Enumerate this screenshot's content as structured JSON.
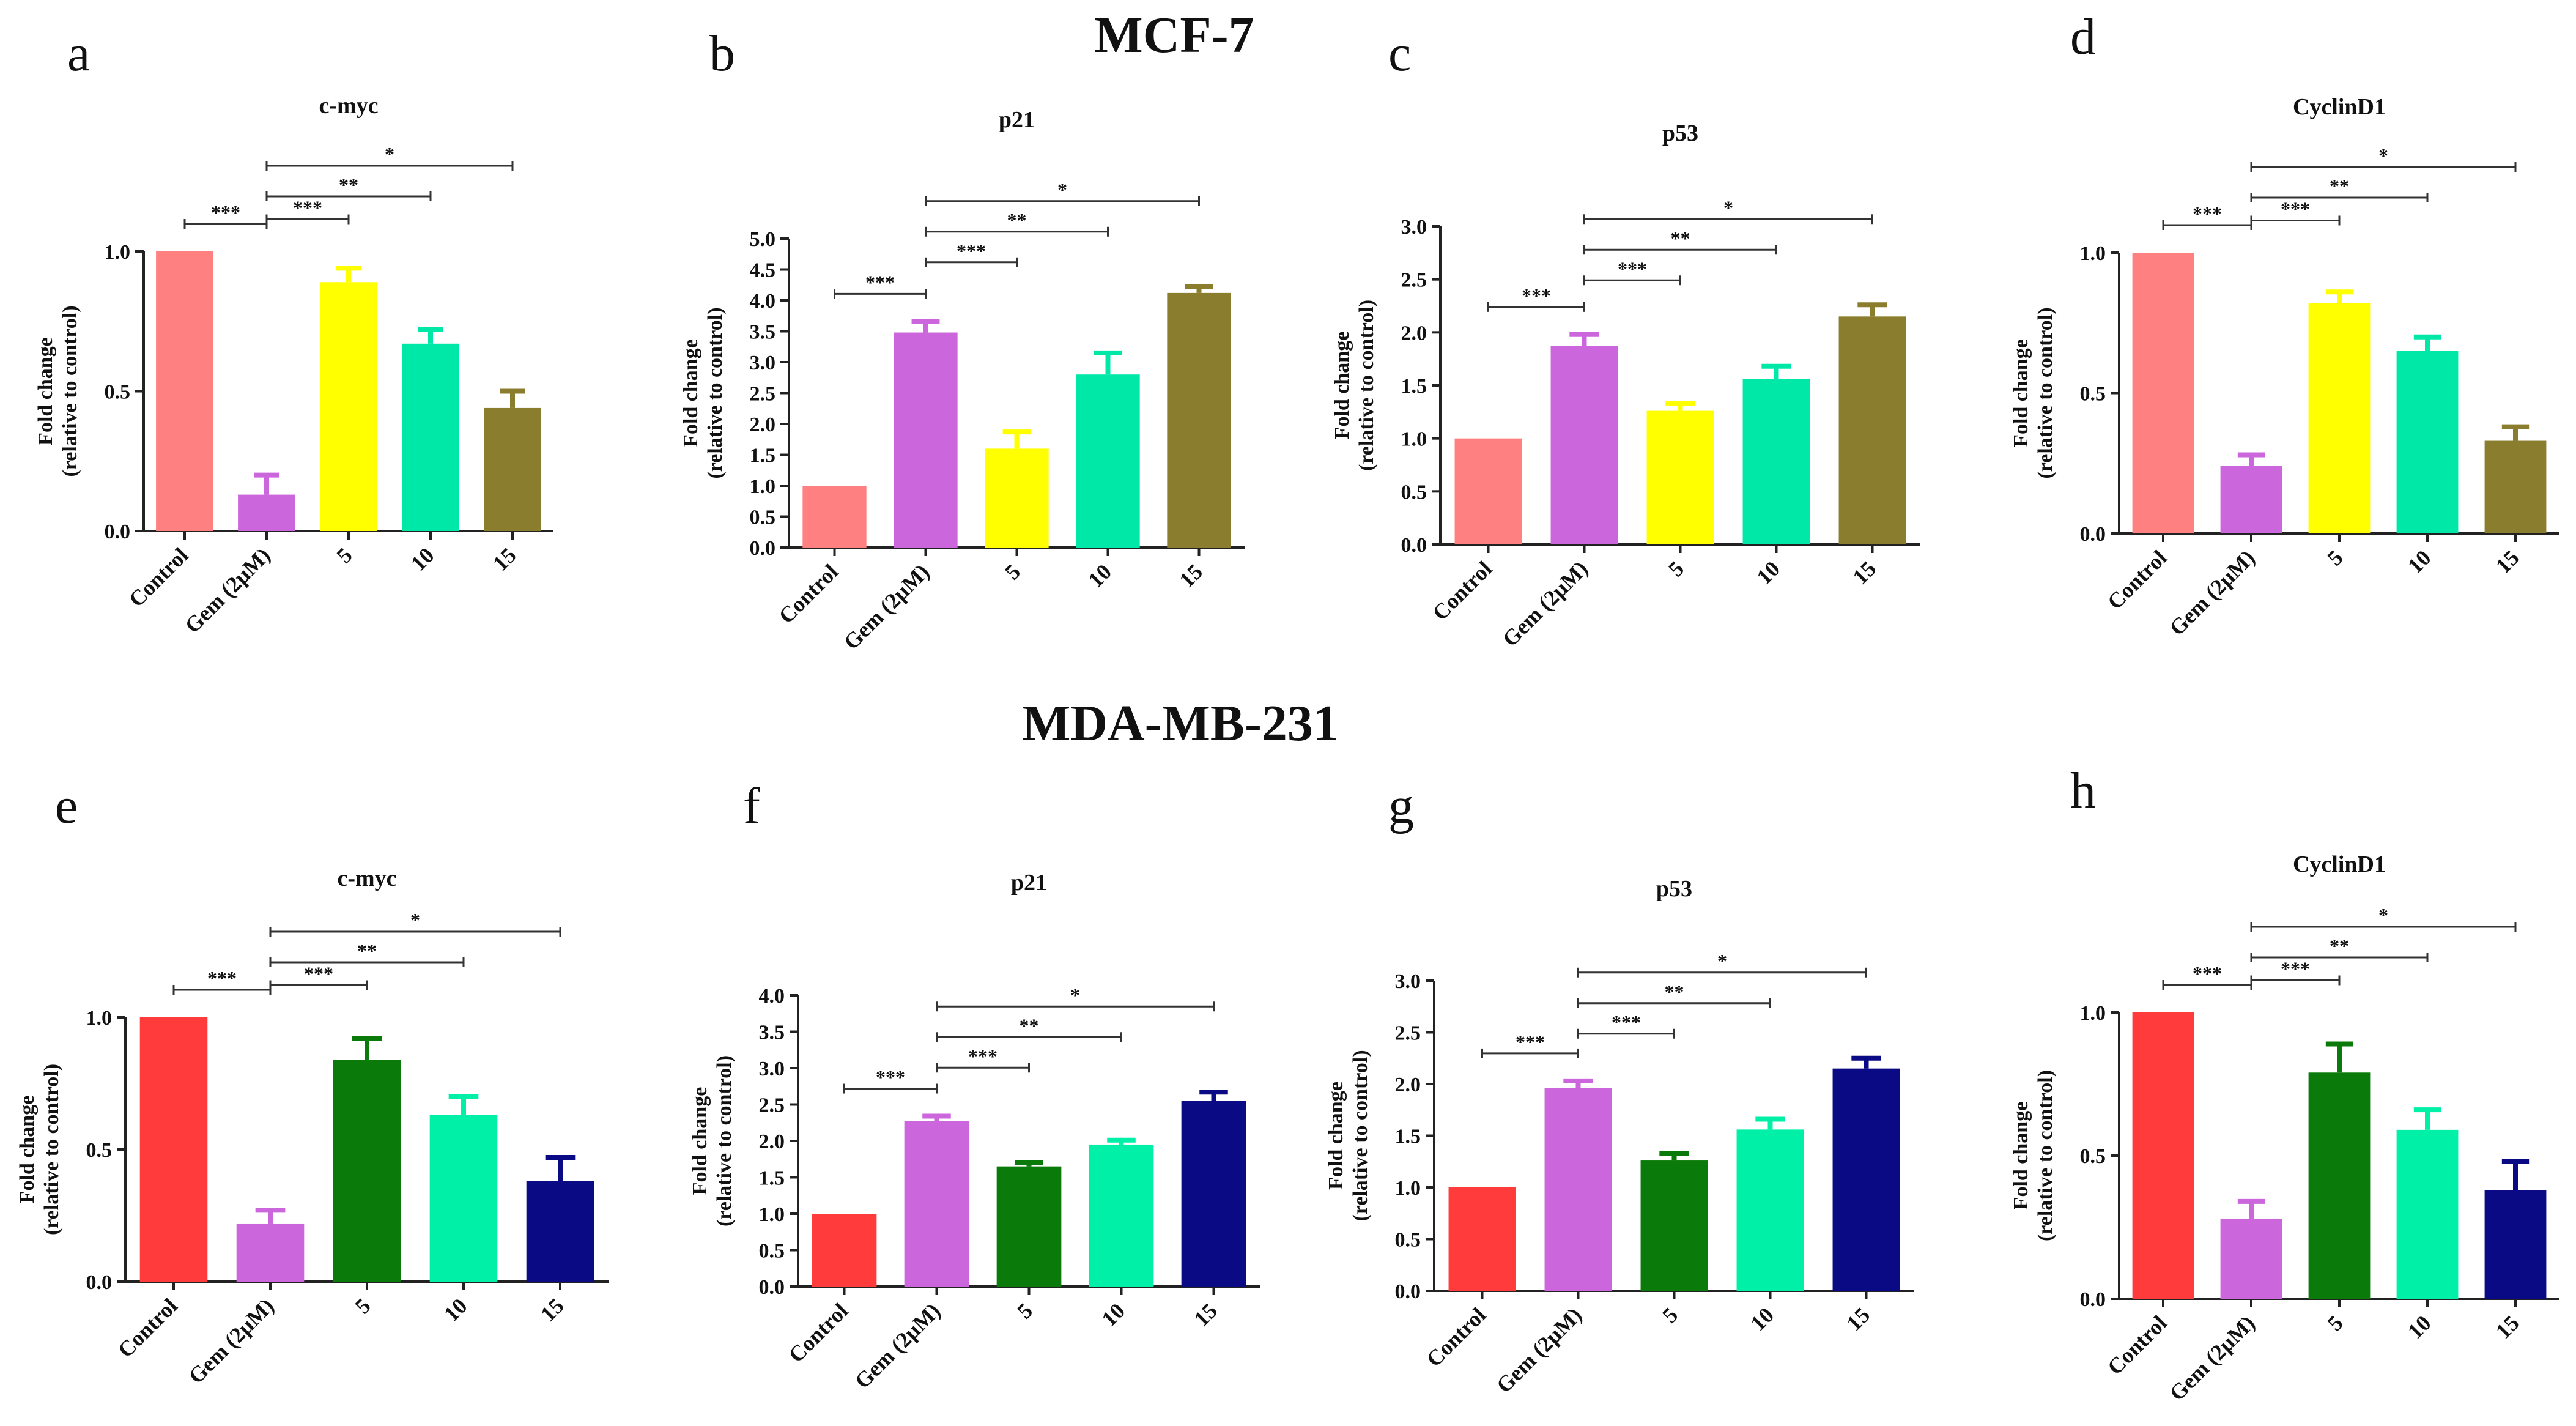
{
  "figure": {
    "row_titles": [
      "MCF-7",
      "MDA-MB-231"
    ]
  },
  "chart_data": [
    {
      "panel": "a",
      "type": "bar",
      "title": "c-myc",
      "ylabel": [
        "Fold change",
        "(relative to control)"
      ],
      "categories": [
        "Control",
        "Gem (2µM)",
        "5",
        "10",
        "15"
      ],
      "values": [
        1.0,
        0.13,
        0.89,
        0.67,
        0.44
      ],
      "errors": [
        0,
        0.07,
        0.05,
        0.05,
        0.06
      ],
      "colors": [
        "#FF8080",
        "#CC66DD",
        "#FFFF00",
        "#00E8A8",
        "#8B7D2E"
      ],
      "ylim": [
        0,
        1.0
      ],
      "yticks": [
        0.0,
        0.5,
        1.0
      ],
      "ytick_labels": [
        "0.0",
        "0.5",
        "1.0"
      ],
      "significance": [
        {
          "from": 0,
          "to": 1,
          "label": "***"
        },
        {
          "from": 1,
          "to": 2,
          "label": "***"
        },
        {
          "from": 1,
          "to": 3,
          "label": "**"
        },
        {
          "from": 1,
          "to": 4,
          "label": "*"
        }
      ]
    },
    {
      "panel": "b",
      "type": "bar",
      "title": "p21",
      "ylabel": [
        "Fold change",
        "(relative to control)"
      ],
      "categories": [
        "Control",
        "Gem (2µM)",
        "5",
        "10",
        "15"
      ],
      "values": [
        1.0,
        3.48,
        1.6,
        2.8,
        4.12
      ],
      "errors": [
        0,
        0.18,
        0.27,
        0.35,
        0.1
      ],
      "colors": [
        "#FF8080",
        "#CC66DD",
        "#FFFF00",
        "#00E8A8",
        "#8B7D2E"
      ],
      "ylim": [
        0,
        5.0
      ],
      "yticks": [
        0.0,
        0.5,
        1.0,
        1.5,
        2.0,
        2.5,
        3.0,
        3.5,
        4.0,
        4.5,
        5.0
      ],
      "ytick_labels": [
        "0.0",
        "0.5",
        "1.0",
        "1.5",
        "2.0",
        "2.5",
        "3.0",
        "3.5",
        "4.0",
        "4.5",
        "5.0"
      ],
      "significance": [
        {
          "from": 0,
          "to": 1,
          "label": "***"
        },
        {
          "from": 1,
          "to": 2,
          "label": "***"
        },
        {
          "from": 1,
          "to": 3,
          "label": "**"
        },
        {
          "from": 1,
          "to": 4,
          "label": "*"
        }
      ]
    },
    {
      "panel": "c",
      "type": "bar",
      "title": "p53",
      "ylabel": [
        "Fold change",
        "(relative to control)"
      ],
      "categories": [
        "Control",
        "Gem (2µM)",
        "5",
        "10",
        "15"
      ],
      "values": [
        1.0,
        1.87,
        1.26,
        1.56,
        2.15
      ],
      "errors": [
        0,
        0.11,
        0.07,
        0.12,
        0.11
      ],
      "colors": [
        "#FF8080",
        "#CC66DD",
        "#FFFF00",
        "#00E8A8",
        "#8B7D2E"
      ],
      "ylim": [
        0,
        3.0
      ],
      "yticks": [
        0.0,
        0.5,
        1.0,
        1.5,
        2.0,
        2.5,
        3.0
      ],
      "ytick_labels": [
        "0.0",
        "0.5",
        "1.0",
        "1.5",
        "2.0",
        "2.5",
        "3.0"
      ],
      "significance": [
        {
          "from": 0,
          "to": 1,
          "label": "***"
        },
        {
          "from": 1,
          "to": 2,
          "label": "***"
        },
        {
          "from": 1,
          "to": 3,
          "label": "**"
        },
        {
          "from": 1,
          "to": 4,
          "label": "*"
        }
      ]
    },
    {
      "panel": "d",
      "type": "bar",
      "title": "CyclinD1",
      "ylabel": [
        "Fold change",
        "(relative to control)"
      ],
      "categories": [
        "Control",
        "Gem (2µM)",
        "5",
        "10",
        "15"
      ],
      "values": [
        1.0,
        0.24,
        0.82,
        0.65,
        0.33
      ],
      "errors": [
        0,
        0.04,
        0.04,
        0.05,
        0.05
      ],
      "colors": [
        "#FF8080",
        "#CC66DD",
        "#FFFF00",
        "#00E8A8",
        "#8B7D2E"
      ],
      "ylim": [
        0,
        1.0
      ],
      "yticks": [
        0.0,
        0.5,
        1.0
      ],
      "ytick_labels": [
        "0.0",
        "0.5",
        "1.0"
      ],
      "significance": [
        {
          "from": 0,
          "to": 1,
          "label": "***"
        },
        {
          "from": 1,
          "to": 2,
          "label": "***"
        },
        {
          "from": 1,
          "to": 3,
          "label": "**"
        },
        {
          "from": 1,
          "to": 4,
          "label": "*"
        }
      ]
    },
    {
      "panel": "e",
      "type": "bar",
      "title": "c-myc",
      "ylabel": [
        "Fold change",
        "(relative to control)"
      ],
      "categories": [
        "Control",
        "Gem (2µM)",
        "5",
        "10",
        "15"
      ],
      "values": [
        1.0,
        0.22,
        0.84,
        0.63,
        0.38
      ],
      "errors": [
        0,
        0.05,
        0.08,
        0.07,
        0.09
      ],
      "colors": [
        "#FF3B3B",
        "#CC66DD",
        "#0A7A0A",
        "#00F0A8",
        "#0A0A85"
      ],
      "ylim": [
        0,
        1.0
      ],
      "yticks": [
        0.0,
        0.5,
        1.0
      ],
      "ytick_labels": [
        "0.0",
        "0.5",
        "1.0"
      ],
      "significance": [
        {
          "from": 0,
          "to": 1,
          "label": "***"
        },
        {
          "from": 1,
          "to": 2,
          "label": "***"
        },
        {
          "from": 1,
          "to": 3,
          "label": "**"
        },
        {
          "from": 1,
          "to": 4,
          "label": "*"
        }
      ]
    },
    {
      "panel": "f",
      "type": "bar",
      "title": "p21",
      "ylabel": [
        "Fold change",
        "(relative to control)"
      ],
      "categories": [
        "Control",
        "Gem (2µM)",
        "5",
        "10",
        "15"
      ],
      "values": [
        1.0,
        2.27,
        1.65,
        1.95,
        2.55
      ],
      "errors": [
        0,
        0.07,
        0.05,
        0.06,
        0.12
      ],
      "colors": [
        "#FF3B3B",
        "#CC66DD",
        "#0A7A0A",
        "#00F0A8",
        "#0A0A85"
      ],
      "ylim": [
        0,
        4.0
      ],
      "yticks": [
        0.0,
        0.5,
        1.0,
        1.5,
        2.0,
        2.5,
        3.0,
        3.5,
        4.0
      ],
      "ytick_labels": [
        "0.0",
        "0.5",
        "1.0",
        "1.5",
        "2.0",
        "2.5",
        "3.0",
        "3.5",
        "4.0"
      ],
      "significance": [
        {
          "from": 0,
          "to": 1,
          "label": "***"
        },
        {
          "from": 1,
          "to": 2,
          "label": "***"
        },
        {
          "from": 1,
          "to": 3,
          "label": "**"
        },
        {
          "from": 1,
          "to": 4,
          "label": "*"
        }
      ]
    },
    {
      "panel": "g",
      "type": "bar",
      "title": "p53",
      "ylabel": [
        "Fold change",
        "(relative to control)"
      ],
      "categories": [
        "Control",
        "Gem (2µM)",
        "5",
        "10",
        "15"
      ],
      "values": [
        1.0,
        1.96,
        1.26,
        1.56,
        2.15
      ],
      "errors": [
        0,
        0.07,
        0.07,
        0.1,
        0.1
      ],
      "colors": [
        "#FF3B3B",
        "#CC66DD",
        "#0A7A0A",
        "#00F0A8",
        "#0A0A85"
      ],
      "ylim": [
        0,
        3.0
      ],
      "yticks": [
        0.0,
        0.5,
        1.0,
        1.5,
        2.0,
        2.5,
        3.0
      ],
      "ytick_labels": [
        "0.0",
        "0.5",
        "1.0",
        "1.5",
        "2.0",
        "2.5",
        "3.0"
      ],
      "significance": [
        {
          "from": 0,
          "to": 1,
          "label": "***"
        },
        {
          "from": 1,
          "to": 2,
          "label": "***"
        },
        {
          "from": 1,
          "to": 3,
          "label": "**"
        },
        {
          "from": 1,
          "to": 4,
          "label": "*"
        }
      ]
    },
    {
      "panel": "h",
      "type": "bar",
      "title": "CyclinD1",
      "ylabel": [
        "Fold change",
        "(relative to control)"
      ],
      "categories": [
        "Control",
        "Gem (2µM)",
        "5",
        "10",
        "15"
      ],
      "values": [
        1.0,
        0.28,
        0.79,
        0.59,
        0.38
      ],
      "errors": [
        0,
        0.06,
        0.1,
        0.07,
        0.1
      ],
      "colors": [
        "#FF3B3B",
        "#CC66DD",
        "#0A7A0A",
        "#00F0A8",
        "#0A0A85"
      ],
      "ylim": [
        0,
        1.0
      ],
      "yticks": [
        0.0,
        0.5,
        1.0
      ],
      "ytick_labels": [
        "0.0",
        "0.5",
        "1.0"
      ],
      "significance": [
        {
          "from": 0,
          "to": 1,
          "label": "***"
        },
        {
          "from": 1,
          "to": 2,
          "label": "***"
        },
        {
          "from": 1,
          "to": 3,
          "label": "**"
        },
        {
          "from": 1,
          "to": 4,
          "label": "*"
        }
      ]
    }
  ]
}
